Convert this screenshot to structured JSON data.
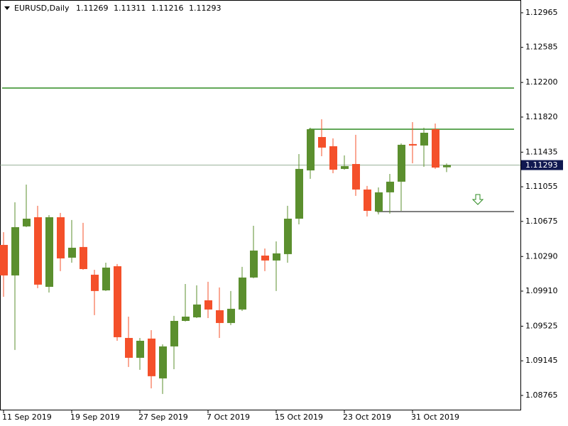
{
  "chart_data": {
    "type": "candlestick",
    "title": "EURUSD,Daily",
    "categories": [
      "11 Sep 2019",
      null,
      null,
      null,
      null,
      null,
      "19 Sep 2019",
      null,
      null,
      null,
      null,
      null,
      "27 Sep 2019",
      null,
      null,
      null,
      null,
      null,
      "7 Oct 2019",
      null,
      null,
      null,
      null,
      null,
      "15 Oct 2019",
      null,
      null,
      null,
      null,
      null,
      "23 Oct 2019",
      null,
      null,
      null,
      null,
      null,
      "31 Oct 2019",
      null,
      null,
      null
    ],
    "open": [
      1.10417,
      1.10082,
      1.1062,
      1.10721,
      1.09957,
      1.10721,
      1.10277,
      1.10394,
      1.1009,
      1.09918,
      1.10183,
      1.09396,
      1.09178,
      1.09389,
      1.08952,
      1.09303,
      1.09583,
      1.09622,
      1.09809,
      1.097,
      1.0956,
      1.09708,
      1.10059,
      1.103,
      1.10246,
      1.10316,
      1.10705,
      1.11235,
      1.11601,
      1.115,
      1.11251,
      1.11305,
      1.11025,
      1.10783,
      1.10994,
      1.11111,
      1.11524,
      1.11508,
      1.11687,
      1.11269
    ],
    "high": [
      1.10557,
      1.10885,
      1.11079,
      1.10846,
      1.10744,
      1.10768,
      1.1069,
      1.10659,
      1.10144,
      1.10222,
      1.10207,
      1.0963,
      1.09396,
      1.09482,
      1.09326,
      1.09638,
      1.09988,
      1.09973,
      1.10012,
      1.0995,
      1.09911,
      1.10176,
      1.10627,
      1.10378,
      1.10456,
      1.10846,
      1.11414,
      1.11703,
      1.11796,
      1.11586,
      1.11399,
      1.11625,
      1.11064,
      1.11048,
      1.11196,
      1.11531,
      1.11765,
      1.11703,
      1.11749,
      1.11311
    ],
    "low": [
      1.09848,
      1.09264,
      1.10612,
      1.09942,
      1.09895,
      1.10129,
      1.10222,
      1.10144,
      1.09646,
      1.09911,
      1.09365,
      1.09077,
      1.09046,
      1.08843,
      1.08781,
      1.09053,
      1.09576,
      1.09614,
      1.09614,
      1.09396,
      1.09537,
      1.09692,
      1.10051,
      1.10129,
      1.09911,
      1.10222,
      1.10643,
      1.11142,
      1.11391,
      1.11204,
      1.11243,
      1.10955,
      1.10729,
      1.10752,
      1.1076,
      1.10791,
      1.11313,
      1.11274,
      1.11251,
      1.11216
    ],
    "close": [
      1.10082,
      1.10612,
      1.10705,
      1.09981,
      1.10721,
      1.10269,
      1.10386,
      1.10152,
      1.09911,
      1.10168,
      1.09404,
      1.09178,
      1.09365,
      1.08976,
      1.09303,
      1.09583,
      1.0963,
      1.09763,
      1.09708,
      1.0956,
      1.09716,
      1.10059,
      1.10355,
      1.10246,
      1.10324,
      1.10705,
      1.11251,
      1.11687,
      1.11485,
      1.11243,
      1.11282,
      1.11025,
      1.10791,
      1.10994,
      1.11111,
      1.11516,
      1.11508,
      1.11648,
      1.11266,
      1.11293
    ],
    "up_color": "#5b8f2e",
    "down_color": "#f4502a",
    "ylim": [
      1.08601,
      1.13105
    ],
    "yticks": [
      1.12965,
      1.12585,
      {
        "value": 1.122,
        "label": "1.12200"
      },
      {
        "value": 1.1182,
        "label": "1.11820"
      },
      1.11435,
      1.11055,
      1.10675,
      {
        "value": 1.1029,
        "label": "1.10290"
      },
      {
        "value": 1.0991,
        "label": "1.09910"
      },
      1.09525,
      1.09145,
      1.08765
    ],
    "levels": [
      {
        "value": 1.12139,
        "color": "#2e8b22",
        "from": 0
      },
      {
        "value": 1.11687,
        "color": "#2e8b22",
        "from": 27
      },
      {
        "value": 1.10783,
        "color": "#555555",
        "from": 33
      }
    ],
    "last_price_color": "#101850"
  }
}
